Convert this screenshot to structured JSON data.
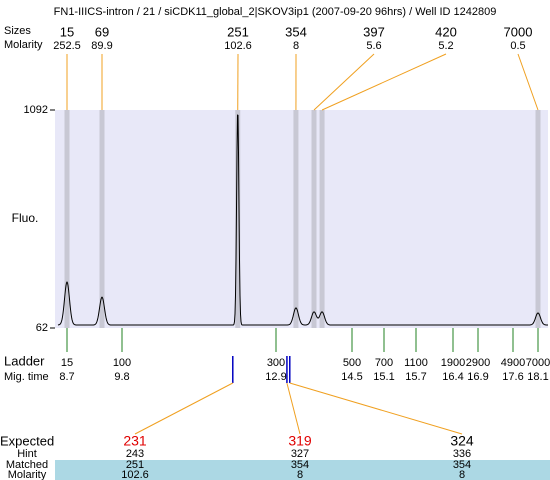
{
  "chart_data": {
    "type": "electropherogram",
    "title": "FN1-IIICS-intron / 21 / siCDK11_global_2|SKOV3ip1 (2007-09-20 96hrs) / Well ID 1242809",
    "y_label": "Fluo.",
    "ylim": [
      62,
      1092
    ],
    "yticks": [
      62,
      1092
    ],
    "baseline": 76,
    "plot_color": "#e8e8f8",
    "band_color": "#c8c8d4",
    "connector_color": "#f0a020",
    "peaks": {
      "size_label": "Sizes",
      "molarity_label": "Molarity",
      "sizes": [
        15,
        69,
        251,
        354,
        397,
        420,
        7000
      ],
      "molarity": [
        252.5,
        89.9,
        102.6,
        8,
        5.6,
        5.2,
        0.5
      ],
      "mig_times": [
        8.7,
        9.4,
        12.13,
        13.32,
        13.7,
        13.87,
        18.1
      ],
      "heights": [
        279,
        208,
        1092,
        157,
        138,
        138,
        133
      ]
    },
    "ladder": {
      "label": "Ladder",
      "mig_label": "Mig. time",
      "color": "#208020",
      "sizes": [
        15,
        100,
        300,
        500,
        700,
        1100,
        1900,
        2900,
        4900,
        7000
      ],
      "mig_times": [
        8.7,
        9.8,
        12.9,
        14.5,
        15.1,
        15.7,
        16.4,
        16.9,
        17.6,
        18.1
      ]
    },
    "expected": {
      "label": "Expected",
      "hint_label": "Hint",
      "matched_label": "Matched",
      "molarity_label": "Molarity",
      "mark_color": "#0000c0",
      "row_color": "#acd8e4",
      "values": [
        231,
        319,
        324
      ],
      "colors": [
        "#e00000",
        "#e00000",
        "#000000"
      ],
      "mig_times": [
        12.03,
        13.13,
        13.19
      ],
      "hint": [
        243,
        327,
        336
      ],
      "matched": [
        251,
        354,
        354
      ],
      "molarity": [
        102.6,
        8,
        8
      ]
    }
  }
}
